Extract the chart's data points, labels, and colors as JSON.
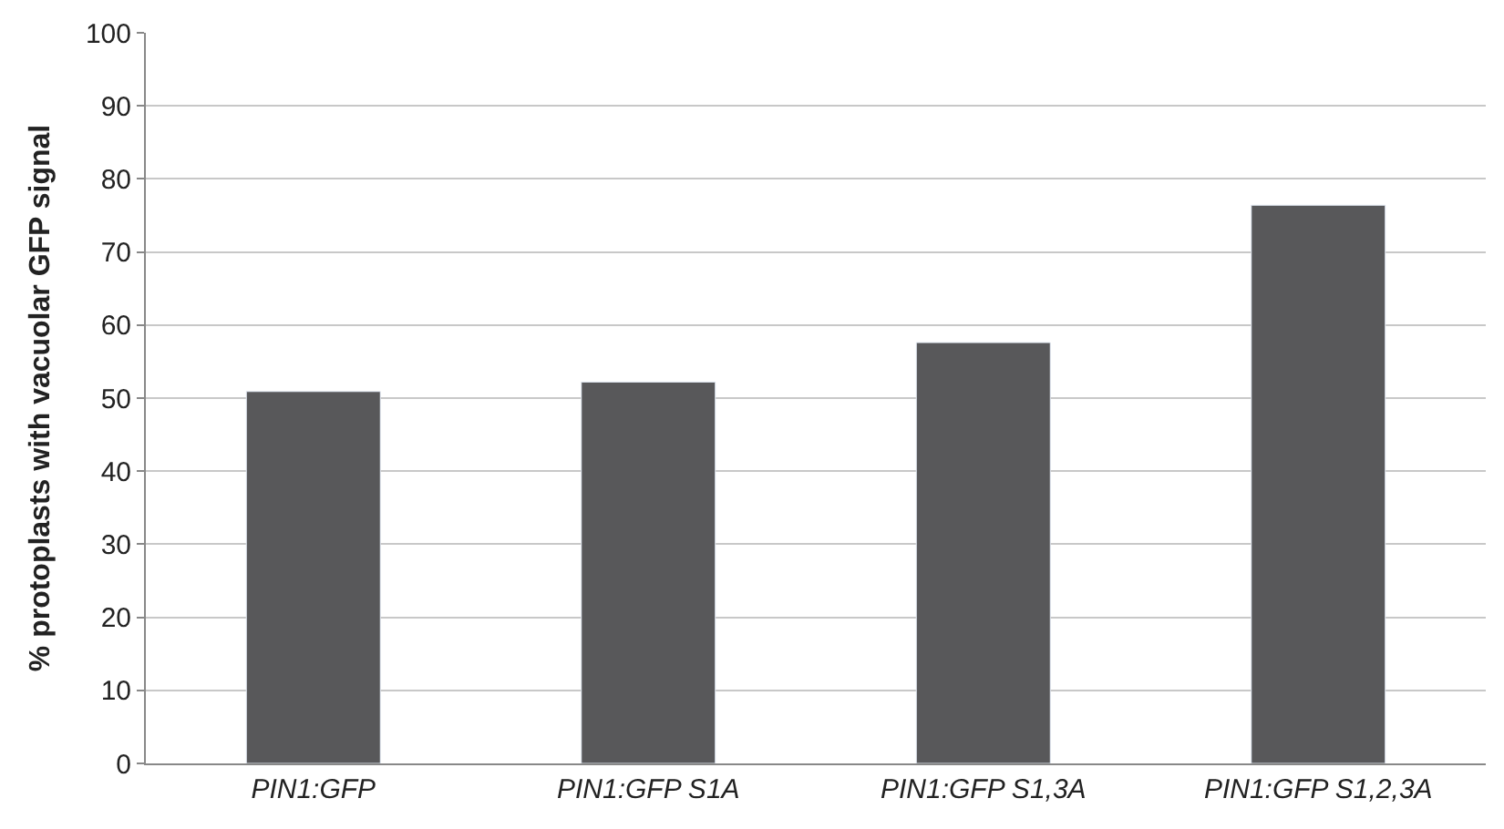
{
  "chart_data": {
    "type": "bar",
    "ylabel": "% protoplasts with vacuolar GFP signal",
    "categories": [
      "PIN1:GFP",
      "PIN1:GFP S1A",
      "PIN1:GFP S1,3A",
      "PIN1:GFP S1,2,3A"
    ],
    "values": [
      50.9,
      52.2,
      57.6,
      76.4
    ],
    "color": "#58585a",
    "ylim": [
      0,
      100
    ],
    "yticks": [
      0,
      10,
      20,
      30,
      40,
      50,
      60,
      70,
      80,
      90,
      100
    ],
    "grid": "y"
  }
}
